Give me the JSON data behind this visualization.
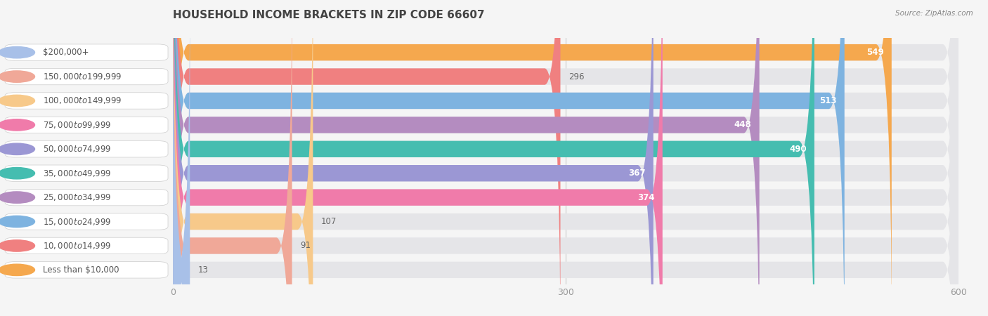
{
  "title": "HOUSEHOLD INCOME BRACKETS IN ZIP CODE 66607",
  "source": "Source: ZipAtlas.com",
  "categories": [
    "Less than $10,000",
    "$10,000 to $14,999",
    "$15,000 to $24,999",
    "$25,000 to $34,999",
    "$35,000 to $49,999",
    "$50,000 to $74,999",
    "$75,000 to $99,999",
    "$100,000 to $149,999",
    "$150,000 to $199,999",
    "$200,000+"
  ],
  "values": [
    549,
    296,
    513,
    448,
    490,
    367,
    374,
    107,
    91,
    13
  ],
  "bar_colors": [
    "#F5A84E",
    "#F08080",
    "#7EB3E0",
    "#B48CC0",
    "#45BDB0",
    "#9B97D4",
    "#F07BAA",
    "#F7C98A",
    "#F0A898",
    "#A8C0E8"
  ],
  "value_inside": [
    true,
    false,
    true,
    true,
    true,
    true,
    true,
    false,
    false,
    false
  ],
  "xlim": [
    0,
    600
  ],
  "xticks": [
    0,
    300,
    600
  ],
  "background_color": "#f5f5f5",
  "bar_bg_color": "#e5e5e8",
  "title_fontsize": 11,
  "label_fontsize": 8.5,
  "value_fontsize": 8.5,
  "bar_height": 0.68
}
